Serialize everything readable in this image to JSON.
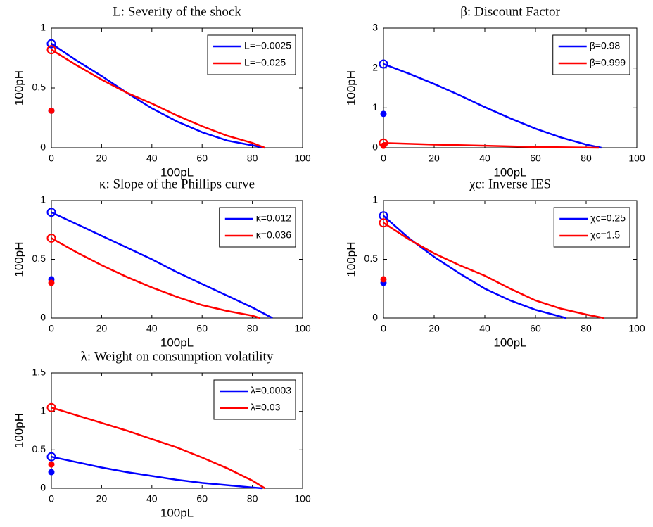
{
  "chart_data": [
    {
      "type": "line",
      "title": "L: Severity of the shock",
      "xlabel": "100pL",
      "ylabel": "100pH",
      "xlim": [
        0,
        100
      ],
      "ylim": [
        0,
        1
      ],
      "xticks": [
        0,
        20,
        40,
        60,
        80,
        100
      ],
      "yticks": [
        0,
        0.5,
        1
      ],
      "legend": "upper right",
      "series": [
        {
          "name": "L=−0.0025",
          "color": "#0000ff",
          "x": [
            0,
            10,
            20,
            30,
            40,
            50,
            60,
            70,
            80,
            85
          ],
          "values": [
            0.87,
            0.73,
            0.6,
            0.46,
            0.33,
            0.22,
            0.13,
            0.06,
            0.02,
            0
          ],
          "marker_value": 0.31
        },
        {
          "name": "L=−0.025",
          "color": "#ff0000",
          "x": [
            0,
            10,
            20,
            30,
            40,
            50,
            60,
            70,
            80,
            85
          ],
          "values": [
            0.82,
            0.69,
            0.57,
            0.46,
            0.37,
            0.27,
            0.18,
            0.1,
            0.04,
            0
          ],
          "marker_value": 0.31
        }
      ]
    },
    {
      "type": "line",
      "title": "β: Discount Factor",
      "xlabel": "100pL",
      "ylabel": "100pH",
      "xlim": [
        0,
        100
      ],
      "ylim": [
        0,
        3
      ],
      "xticks": [
        0,
        20,
        40,
        60,
        80,
        100
      ],
      "yticks": [
        0,
        1,
        2,
        3
      ],
      "legend": "upper right",
      "series": [
        {
          "name": "β=0.98",
          "color": "#0000ff",
          "x": [
            0,
            10,
            20,
            30,
            40,
            50,
            60,
            70,
            80,
            86
          ],
          "values": [
            2.1,
            1.86,
            1.6,
            1.32,
            1.02,
            0.74,
            0.48,
            0.26,
            0.08,
            0
          ],
          "marker_value": 0.85
        },
        {
          "name": "β=0.999",
          "color": "#ff0000",
          "x": [
            0,
            20,
            40,
            60,
            80,
            85
          ],
          "values": [
            0.12,
            0.08,
            0.05,
            0.02,
            0.005,
            0
          ],
          "marker_value": 0.05
        }
      ]
    },
    {
      "type": "line",
      "title": "κ: Slope of the Phillips curve",
      "xlabel": "100pL",
      "ylabel": "100pH",
      "xlim": [
        0,
        100
      ],
      "ylim": [
        0,
        1
      ],
      "xticks": [
        0,
        20,
        40,
        60,
        80,
        100
      ],
      "yticks": [
        0,
        0.5,
        1
      ],
      "legend": "upper right",
      "series": [
        {
          "name": "κ=0.012",
          "color": "#0000ff",
          "x": [
            0,
            10,
            20,
            30,
            40,
            50,
            60,
            70,
            80,
            88
          ],
          "values": [
            0.9,
            0.8,
            0.7,
            0.6,
            0.5,
            0.39,
            0.29,
            0.19,
            0.09,
            0
          ],
          "marker_value": 0.33
        },
        {
          "name": "κ=0.036",
          "color": "#ff0000",
          "x": [
            0,
            10,
            20,
            30,
            40,
            50,
            60,
            70,
            80,
            83
          ],
          "values": [
            0.68,
            0.56,
            0.45,
            0.35,
            0.26,
            0.18,
            0.11,
            0.06,
            0.02,
            0
          ],
          "marker_value": 0.3
        }
      ]
    },
    {
      "type": "line",
      "title": "χc: Inverse IES",
      "xlabel": "100pL",
      "ylabel": "100pH",
      "xlim": [
        0,
        100
      ],
      "ylim": [
        0,
        1
      ],
      "xticks": [
        0,
        20,
        40,
        60,
        80,
        100
      ],
      "yticks": [
        0,
        0.5,
        1
      ],
      "legend": "upper right",
      "series": [
        {
          "name": "χc=0.25",
          "color": "#0000ff",
          "x": [
            0,
            10,
            20,
            30,
            40,
            50,
            60,
            72
          ],
          "values": [
            0.87,
            0.68,
            0.52,
            0.38,
            0.25,
            0.15,
            0.07,
            0
          ],
          "marker_value": 0.3
        },
        {
          "name": "χc=1.5",
          "color": "#ff0000",
          "x": [
            0,
            10,
            20,
            30,
            40,
            50,
            60,
            70,
            80,
            87
          ],
          "values": [
            0.81,
            0.67,
            0.55,
            0.45,
            0.36,
            0.25,
            0.15,
            0.08,
            0.03,
            0
          ],
          "marker_value": 0.33
        }
      ]
    },
    {
      "type": "line",
      "title": "λ: Weight on consumption volatility",
      "xlabel": "100pL",
      "ylabel": "100pH",
      "xlim": [
        0,
        100
      ],
      "ylim": [
        0,
        1.5
      ],
      "xticks": [
        0,
        20,
        40,
        60,
        80,
        100
      ],
      "yticks": [
        0,
        0.5,
        1,
        1.5
      ],
      "legend": "upper right",
      "series": [
        {
          "name": "λ=0.0003",
          "color": "#0000ff",
          "x": [
            0,
            10,
            20,
            30,
            40,
            50,
            60,
            70,
            80,
            84
          ],
          "values": [
            0.41,
            0.34,
            0.27,
            0.21,
            0.16,
            0.11,
            0.07,
            0.04,
            0.01,
            0
          ],
          "marker_value": 0.21
        },
        {
          "name": "λ=0.03",
          "color": "#ff0000",
          "x": [
            0,
            10,
            20,
            30,
            40,
            50,
            60,
            70,
            80,
            85
          ],
          "values": [
            1.05,
            0.95,
            0.85,
            0.75,
            0.64,
            0.53,
            0.4,
            0.26,
            0.1,
            0
          ],
          "marker_value": 0.31
        }
      ]
    }
  ]
}
